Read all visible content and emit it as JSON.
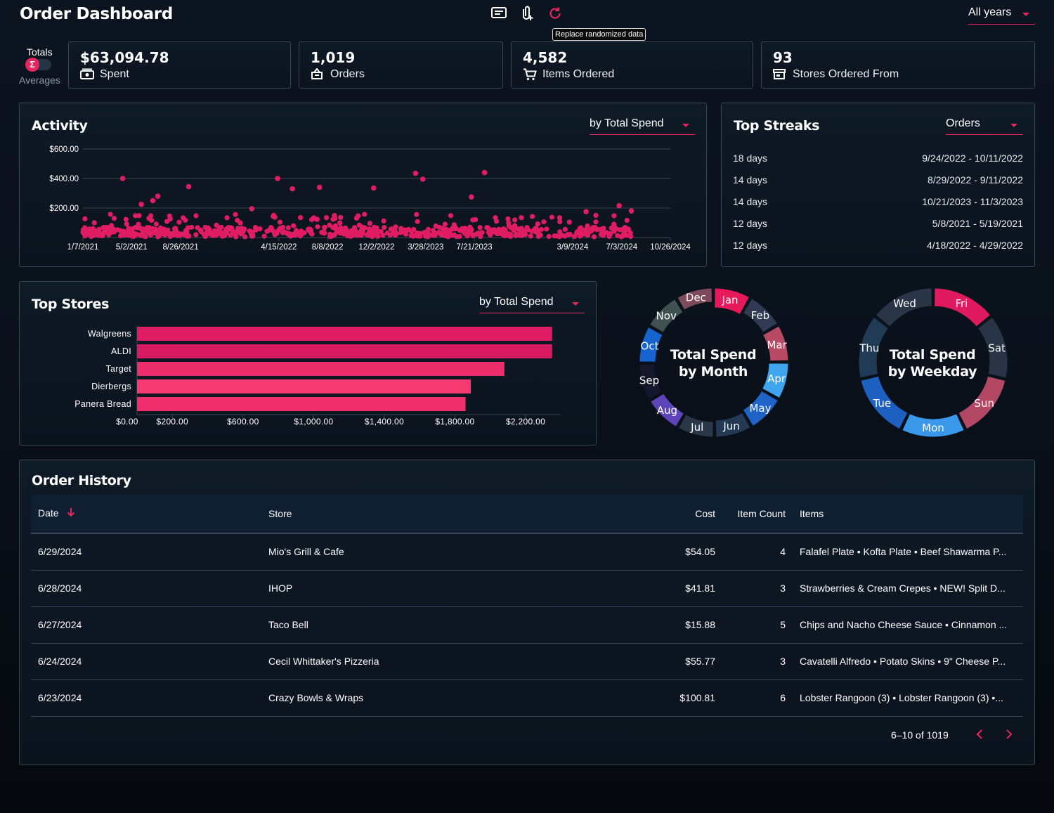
{
  "app": {
    "title": "Order Dashboard"
  },
  "toolbar": {
    "tooltip": "Replace randomized data",
    "year_select": "All years"
  },
  "toggle": {
    "on_label": "Totals",
    "off_label": "Averages",
    "icon_glyph": "Σ"
  },
  "kpis": [
    {
      "value": "$63,094.78",
      "label": "Spent",
      "icon": "money-icon"
    },
    {
      "value": "1,019",
      "label": "Orders",
      "icon": "basket-icon"
    },
    {
      "value": "4,582",
      "label": "Items Ordered",
      "icon": "cart-icon"
    },
    {
      "value": "93",
      "label": "Stores Ordered From",
      "icon": "store-icon"
    }
  ],
  "activity": {
    "title": "Activity",
    "select": "by Total Spend",
    "chart_data": {
      "type": "scatter",
      "ylim": [
        0,
        600
      ],
      "y_ticks": [
        "$600.00",
        "$400.00",
        "$200.00"
      ],
      "x_ticks": [
        "1/7/2021",
        "5/2/2021",
        "8/26/2021",
        "4/15/2022",
        "8/8/2022",
        "12/2/2022",
        "3/28/2023",
        "7/21/2023",
        "3/9/2024",
        "7/3/2024",
        "10/26/2024"
      ],
      "color": "#e01d63",
      "highlights": [
        {
          "x": "4/11/2021",
          "y": 400
        },
        {
          "x": "7/3/2021",
          "y": 280
        },
        {
          "x": "9/14/2021",
          "y": 345
        },
        {
          "x": "4/12/2022",
          "y": 400
        },
        {
          "x": "5/17/2022",
          "y": 330
        },
        {
          "x": "7/20/2022",
          "y": 340
        },
        {
          "x": "11/25/2022",
          "y": 335
        },
        {
          "x": "3/4/2023",
          "y": 435
        },
        {
          "x": "3/21/2023",
          "y": 395
        },
        {
          "x": "7/14/2023",
          "y": 275
        },
        {
          "x": "8/14/2023",
          "y": 440
        },
        {
          "x": "5/25/2021",
          "y": 225
        },
        {
          "x": "6/21/2021",
          "y": 250
        },
        {
          "x": "2/10/2022",
          "y": 195
        },
        {
          "x": "4/10/2024",
          "y": 175
        },
        {
          "x": "6/27/2024",
          "y": 215
        },
        {
          "x": "7/26/2024",
          "y": 180
        }
      ]
    }
  },
  "streaks": {
    "title": "Top Streaks",
    "select": "Orders",
    "rows": [
      {
        "days": "18 days",
        "range": "9/24/2022 - 10/11/2022"
      },
      {
        "days": "14 days",
        "range": "8/29/2022 - 9/11/2022"
      },
      {
        "days": "14 days",
        "range": "10/21/2023 - 11/3/2023"
      },
      {
        "days": "12 days",
        "range": "5/8/2021 - 5/19/2021"
      },
      {
        "days": "12 days",
        "range": "4/18/2022 - 4/29/2022"
      }
    ]
  },
  "top_stores": {
    "title": "Top Stores",
    "select": "by Total Spend",
    "chart_data": {
      "type": "bar",
      "orientation": "horizontal",
      "categories": [
        "Walgreens",
        "ALDI",
        "Target",
        "Dierbergs",
        "Panera Bread"
      ],
      "values": [
        2350,
        2350,
        2080,
        1890,
        1860
      ],
      "x_ticks": [
        "$0.00",
        "$200.00",
        "$600.00",
        "$1,000.00",
        "$1,400.00",
        "$1,800.00",
        "$2,200.00"
      ],
      "colors": [
        "#e01d63",
        "#d81b60",
        "#ec2e6c",
        "#f53b71",
        "#f0306c"
      ]
    }
  },
  "by_month": {
    "title_line1": "Total Spend",
    "title_line2": "by Month",
    "chart_data": {
      "type": "pie",
      "segments": [
        {
          "label": "Jan",
          "color": "#e8195a",
          "width": 28
        },
        {
          "label": "Feb",
          "color": "#303a52",
          "width": 24
        },
        {
          "label": "Mar",
          "color": "#b94a66",
          "width": 26
        },
        {
          "label": "Apr",
          "color": "#3fa5ec",
          "width": 28
        },
        {
          "label": "May",
          "color": "#1f63c7",
          "width": 27
        },
        {
          "label": "Jun",
          "color": "#233954",
          "width": 24
        },
        {
          "label": "Jul",
          "color": "#2a3748",
          "width": 22
        },
        {
          "label": "Aug",
          "color": "#5d44b8",
          "width": 22
        },
        {
          "label": "Sep",
          "color": "#16172c",
          "width": 21
        },
        {
          "label": "Oct",
          "color": "#1564cf",
          "width": 23
        },
        {
          "label": "Nov",
          "color": "#3f5150",
          "width": 22
        },
        {
          "label": "Dec",
          "color": "#7d4a5c",
          "width": 20
        }
      ]
    }
  },
  "by_weekday": {
    "title_line1": "Total Spend",
    "title_line2": "by Weekday",
    "chart_data": {
      "type": "pie",
      "segments": [
        {
          "label": "Fri",
          "color": "#e01a5e"
        },
        {
          "label": "Sat",
          "color": "#2a3447"
        },
        {
          "label": "Sun",
          "color": "#b24864"
        },
        {
          "label": "Mon",
          "color": "#3998ea"
        },
        {
          "label": "Tue",
          "color": "#1e5fc2"
        },
        {
          "label": "Thu",
          "color": "#213a55"
        },
        {
          "label": "Wed",
          "color": "#2a3648"
        }
      ]
    }
  },
  "history": {
    "title": "Order History",
    "columns": {
      "date": "Date",
      "store": "Store",
      "cost": "Cost",
      "count": "Item Count",
      "items": "Items"
    },
    "rows": [
      {
        "date": "6/29/2024",
        "store": "Mio's Grill & Cafe",
        "cost": "$54.05",
        "count": "4",
        "items": "Falafel Plate • Kofta Plate • Beef Shawarma P..."
      },
      {
        "date": "6/28/2024",
        "store": "IHOP",
        "cost": "$41.81",
        "count": "3",
        "items": "Strawberries & Cream Crepes • NEW! Split D..."
      },
      {
        "date": "6/27/2024",
        "store": "Taco Bell",
        "cost": "$15.88",
        "count": "5",
        "items": "Chips and Nacho Cheese Sauce • Cinnamon ..."
      },
      {
        "date": "6/24/2024",
        "store": "Cecil Whittaker's Pizzeria",
        "cost": "$55.77",
        "count": "3",
        "items": "Cavatelli Alfredo • Potato Skins • 9\" Cheese P..."
      },
      {
        "date": "6/23/2024",
        "store": "Crazy Bowls & Wraps",
        "cost": "$100.81",
        "count": "6",
        "items": "Lobster Rangoon (3) • Lobster Rangoon (3) •..."
      }
    ],
    "pagination": "6–10 of 1019"
  },
  "colors": {
    "accent": "#e8245f",
    "border": "#3a4654",
    "bg": "#0c1420"
  }
}
